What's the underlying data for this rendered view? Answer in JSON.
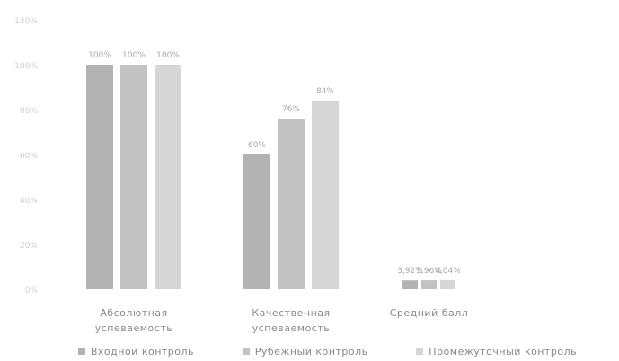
{
  "chart_data": {
    "type": "bar",
    "categories": [
      "Абсолютная\nуспеваемость",
      "Качественная\nуспеваемость",
      "Средний балл"
    ],
    "series": [
      {
        "name": "Входной контроль",
        "values": [
          100,
          60,
          3.92
        ],
        "labels": [
          "100%",
          "60%",
          "3,92%"
        ],
        "color": "#b3b3b3"
      },
      {
        "name": "Рубежный контроль",
        "values": [
          100,
          76,
          3.96
        ],
        "labels": [
          "100%",
          "76%",
          "3,96%"
        ],
        "color": "#c2c2c2"
      },
      {
        "name": "Промежуточный контроль",
        "values": [
          100,
          84,
          4.04
        ],
        "labels": [
          "100%",
          "84%",
          "4,04%"
        ],
        "color": "#d6d6d6"
      }
    ],
    "y_ticks": [
      "0%",
      "20%",
      "40%",
      "60%",
      "80%",
      "100%",
      "120%"
    ],
    "ylim": [
      0,
      120
    ],
    "grid": false,
    "legend_position": "bottom"
  }
}
